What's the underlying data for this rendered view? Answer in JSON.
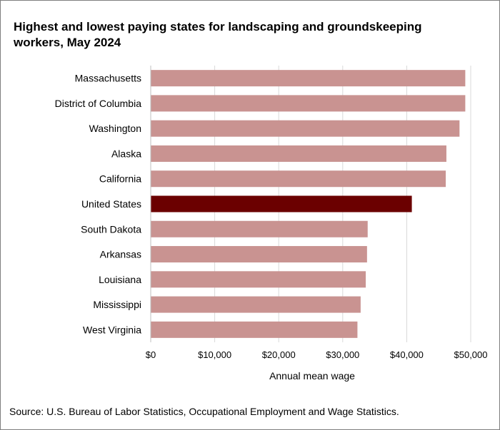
{
  "chart_data": {
    "type": "bar",
    "orientation": "horizontal",
    "title": "Highest and lowest paying states for landscaping and groundskeeping workers, May 2024",
    "xlabel": "Annual mean wage",
    "ylabel": "",
    "xlim": [
      0,
      50000
    ],
    "x_ticks": [
      0,
      10000,
      20000,
      30000,
      40000,
      50000
    ],
    "x_tick_labels": [
      "$0",
      "$10,000",
      "$20,000",
      "$30,000",
      "$40,000",
      "$50,000"
    ],
    "grid": "vertical",
    "legend": "none",
    "categories": [
      "Massachusetts",
      "District of Columbia",
      "Washington",
      "Alaska",
      "California",
      "United States",
      "South Dakota",
      "Arkansas",
      "Louisiana",
      "Mississippi",
      "West Virginia"
    ],
    "values": [
      49150,
      49150,
      48250,
      46200,
      46100,
      40800,
      33900,
      33800,
      33600,
      32800,
      32300
    ],
    "highlight": "United States",
    "colors": {
      "bar": "#c99391",
      "highlight": "#6b0000",
      "grid": "#d9d9d9"
    }
  },
  "source": "Source: U.S. Bureau of Labor Statistics, Occupational Employment  and Wage Statistics."
}
